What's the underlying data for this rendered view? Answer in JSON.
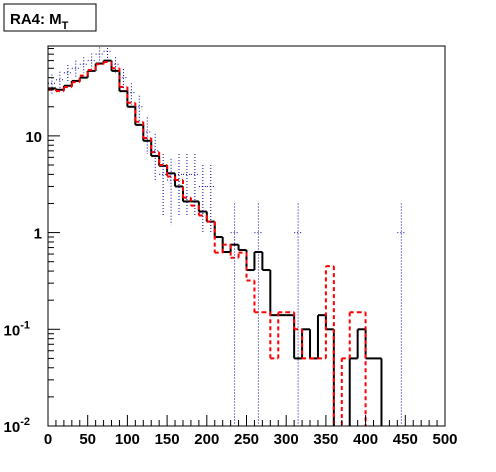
{
  "chart_data": {
    "type": "histogram",
    "title": "RA4: M",
    "title_subscript": "T",
    "bins": [
      0,
      10,
      20,
      30,
      40,
      50,
      60,
      70,
      80,
      90,
      100,
      110,
      120,
      130,
      140,
      150,
      160,
      170,
      180,
      190,
      200,
      210,
      220,
      230,
      240,
      250,
      260,
      270,
      280,
      290,
      300,
      310,
      320,
      330,
      340,
      350,
      360,
      370,
      380,
      390,
      400,
      410,
      420,
      430,
      440,
      450,
      460,
      470,
      480,
      490,
      500
    ],
    "series": [
      {
        "color": "#000000",
        "style": "solid",
        "values": [
          31,
          30,
          33,
          37,
          40,
          47,
          56,
          60,
          47,
          29,
          20,
          13,
          8.9,
          6.2,
          4.9,
          4.1,
          3.0,
          2.1,
          2.1,
          1.65,
          1.3,
          0.9,
          0.63,
          0.75,
          0.66,
          0.41,
          0.63,
          0.41,
          0.14,
          0.14,
          0.14,
          0.05,
          0.1,
          0.05,
          0.14,
          0.1,
          0,
          0,
          0.05,
          0.1,
          0.05,
          0.05,
          0,
          0,
          0,
          0,
          0,
          0,
          0,
          0
        ]
      },
      {
        "color": "#ff0000",
        "style": "dashed",
        "values": [
          30,
          29,
          32,
          36,
          42,
          48,
          55,
          58,
          50,
          32,
          22,
          14,
          9.5,
          6.8,
          5,
          3.8,
          3.5,
          2.3,
          1.9,
          1.5,
          1.3,
          0.62,
          0.75,
          0.55,
          0.62,
          0.32,
          0.15,
          0.15,
          0.05,
          0.15,
          0.15,
          0.1,
          0.05,
          0.05,
          0.05,
          0.45,
          0,
          0.05,
          0.15,
          0.15,
          0,
          0,
          0,
          0,
          0,
          0,
          0,
          0,
          0,
          0
        ]
      },
      {
        "color": "#000099",
        "style": "points",
        "values": [
          35,
          38,
          45,
          50,
          55,
          60,
          70,
          75,
          55,
          40,
          28,
          20,
          11,
          7,
          4,
          3.5,
          4,
          4,
          4,
          3,
          3,
          0,
          0,
          1,
          0,
          0,
          1,
          0,
          0,
          0,
          0,
          1,
          0,
          0,
          0,
          0,
          0,
          0,
          0,
          0,
          0,
          0,
          0,
          0,
          1,
          0,
          0,
          0,
          0,
          0
        ],
        "errors": [
          8,
          8,
          9,
          10,
          10,
          11,
          12,
          12,
          10,
          9,
          7,
          6,
          4.5,
          3.5,
          2.5,
          2.3,
          2.5,
          2.5,
          2.5,
          2,
          2,
          0,
          0,
          1,
          0,
          0,
          1,
          0,
          0,
          0,
          0,
          1,
          0,
          0,
          0,
          0,
          0,
          0,
          0,
          0,
          0,
          0,
          0,
          0,
          1,
          0,
          0,
          0,
          0,
          0
        ]
      }
    ],
    "xlim": [
      0,
      500
    ],
    "xticks": [
      0,
      50,
      100,
      150,
      200,
      250,
      300,
      350,
      400,
      450,
      500
    ],
    "ylim": [
      0.01,
      85
    ],
    "log_y": true,
    "yticks": [
      {
        "value": 0.01,
        "label": "10",
        "exponent": "-2"
      },
      {
        "value": 0.1,
        "label": "10",
        "exponent": "-1"
      },
      1,
      10
    ]
  }
}
